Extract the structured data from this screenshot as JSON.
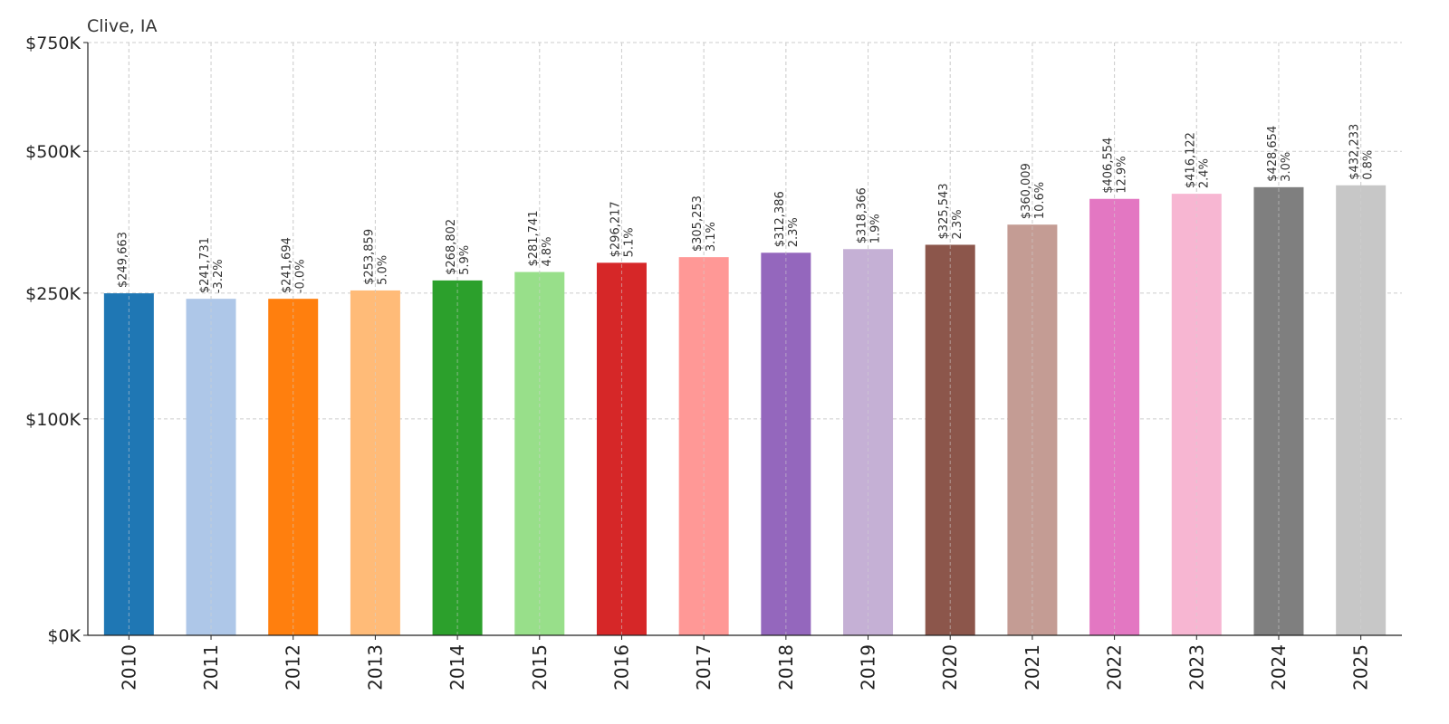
{
  "chart_data": {
    "type": "bar",
    "title": "Clive, IA",
    "xlabel": "",
    "ylabel": "",
    "categories": [
      "2010",
      "2011",
      "2012",
      "2013",
      "2014",
      "2015",
      "2016",
      "2017",
      "2018",
      "2019",
      "2020",
      "2021",
      "2022",
      "2023",
      "2024",
      "2025"
    ],
    "values": [
      249663,
      241731,
      241694,
      253859,
      268802,
      281741,
      296217,
      305253,
      312386,
      318366,
      325543,
      360009,
      406554,
      416122,
      428654,
      432233
    ],
    "value_labels": [
      "$249,663",
      "$241,731",
      "$241,694",
      "$253,859",
      "$268,802",
      "$281,741",
      "$296,217",
      "$305,253",
      "$312,386",
      "$318,366",
      "$325,543",
      "$360,009",
      "$406,554",
      "$416,122",
      "$428,654",
      "$432,233"
    ],
    "change_labels": [
      "",
      "-3.2%",
      "-0.0%",
      "5.0%",
      "5.9%",
      "4.8%",
      "5.1%",
      "3.1%",
      "2.3%",
      "1.9%",
      "2.3%",
      "10.6%",
      "12.9%",
      "2.4%",
      "3.0%",
      "0.8%"
    ],
    "colors": [
      "#1f77b4",
      "#aec7e8",
      "#ff7f0e",
      "#ffbb78",
      "#2ca02c",
      "#98df8a",
      "#d62728",
      "#ff9896",
      "#9467bd",
      "#c5b0d5",
      "#8c564b",
      "#c49c94",
      "#e377c2",
      "#f7b6d2",
      "#7f7f7f",
      "#c7c7c7"
    ],
    "ylim": [
      0,
      750000
    ],
    "yscale": "sqrt",
    "yticks": [
      0,
      100000,
      250000,
      500000,
      750000
    ],
    "ytick_labels": [
      "$0K",
      "$100K",
      "$250K",
      "$500K",
      "$750K"
    ],
    "grid": true,
    "legend": "none"
  }
}
